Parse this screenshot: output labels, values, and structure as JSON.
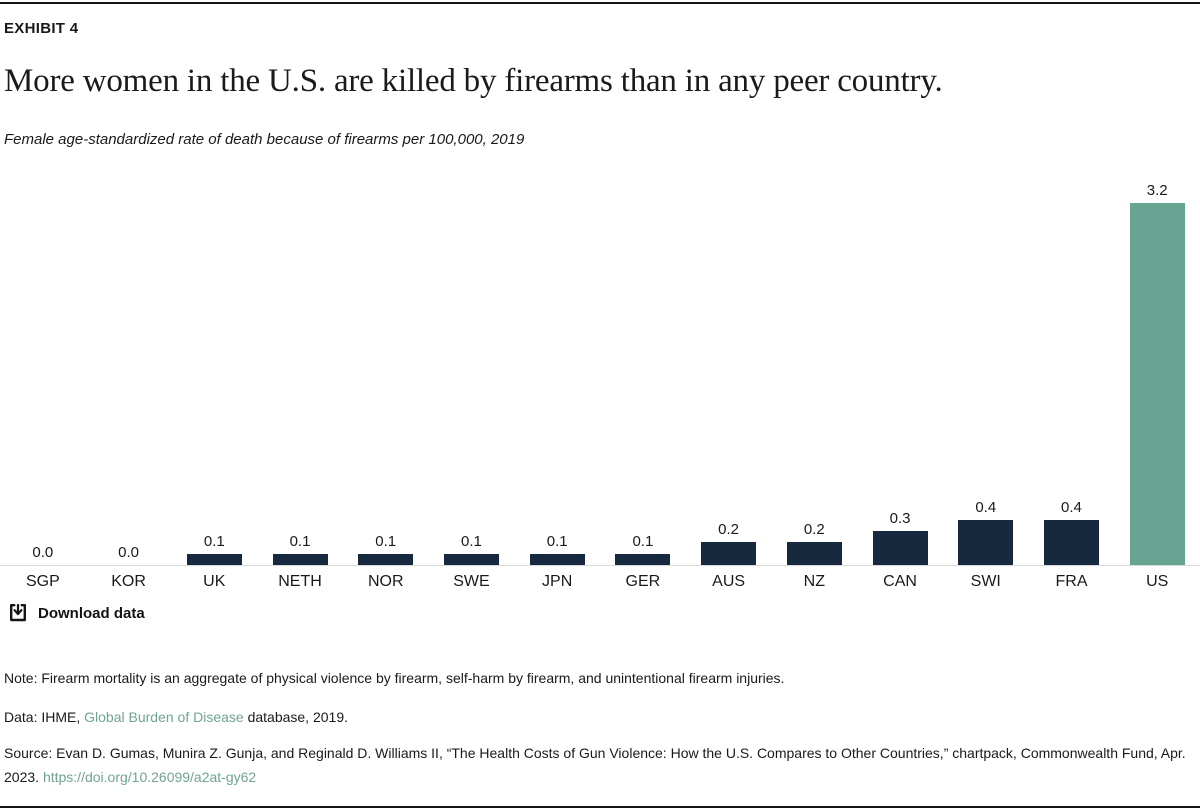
{
  "header": {
    "exhibit": "EXHIBIT 4",
    "title": "More women in the U.S. are killed by firearms than in any peer country.",
    "subtitle": "Female age-standardized rate of death because of firearms per 100,000, 2019"
  },
  "chart_data": {
    "type": "bar",
    "title": "More women in the U.S. are killed by firearms than in any peer country.",
    "subtitle": "Female age-standardized rate of death because of firearms per 100,000, 2019",
    "categories": [
      "SGP",
      "KOR",
      "UK",
      "NETH",
      "NOR",
      "SWE",
      "JPN",
      "GER",
      "AUS",
      "NZ",
      "CAN",
      "SWI",
      "FRA",
      "US"
    ],
    "values": [
      0.0,
      0.0,
      0.1,
      0.1,
      0.1,
      0.1,
      0.1,
      0.1,
      0.2,
      0.2,
      0.3,
      0.4,
      0.4,
      3.2
    ],
    "value_labels": [
      "0.0",
      "0.0",
      "0.1",
      "0.1",
      "0.1",
      "0.1",
      "0.1",
      "0.1",
      "0.2",
      "0.2",
      "0.3",
      "0.4",
      "0.4",
      "3.2"
    ],
    "xlabel": "",
    "ylabel": "",
    "ylim": [
      0,
      3.4
    ],
    "grid": false,
    "legend": "none",
    "bar_color": "#16293E",
    "highlight_category": "US",
    "highlight_color": "#67A492",
    "axis_line_color": "#d9d9d9"
  },
  "toolbar": {
    "download_label": "Download data"
  },
  "footer": {
    "note": "Note: Firearm mortality is an aggregate of physical violence by firearm, self-harm by firearm, and unintentional firearm injuries.",
    "data_prefix": "Data: IHME, ",
    "data_link": "Global Burden of Disease",
    "data_suffix": " database, 2019.",
    "source_prefix": "Source: Evan D. Gumas, Munira Z. Gunja, and Reginald D. Williams II, “The Health Costs of Gun Violence: How the U.S. Compares to Other Countries,” chartpack, Commonwealth Fund, Apr. 2023. ",
    "source_link": "https://doi.org/10.26099/a2at-gy62",
    "link_color": "#6FA58F"
  }
}
